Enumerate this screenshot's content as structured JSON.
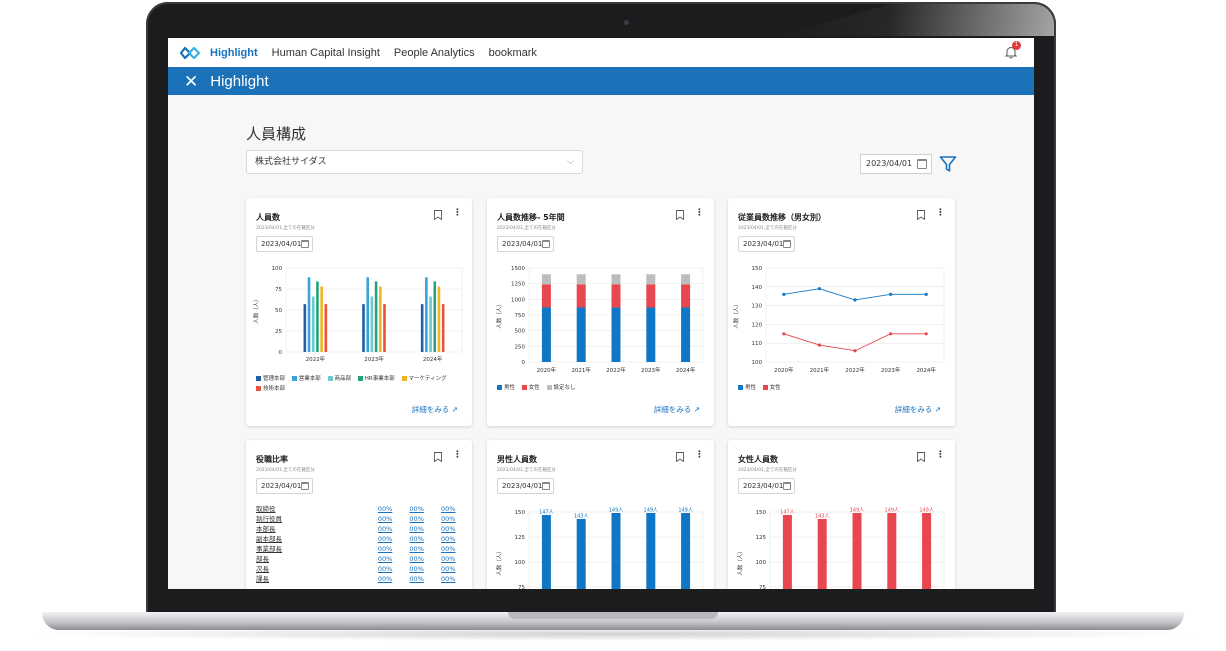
{
  "nav": {
    "items": [
      "Highlight",
      "Human Capital Insight",
      "People Analytics",
      "bookmark"
    ],
    "notification_count": "1"
  },
  "header": {
    "title": "Highlight"
  },
  "page": {
    "title": "人員構成",
    "company": "株式会社サイダス",
    "date": "2023/04/01"
  },
  "colors": {
    "brand": "#1c72b8",
    "male": "#0f77c6",
    "female": "#e8474f",
    "unset": "#bdbdbd"
  },
  "cards": [
    {
      "title": "人員数",
      "subtitle": "2023/04/01,全ての在籍区分",
      "date": "2023/04/01",
      "more": "詳細をみる",
      "chart_data": {
        "type": "bar",
        "categories": [
          "2022年",
          "2023年",
          "2024年"
        ],
        "ylabel": "人数（人）",
        "ylim": [
          0,
          100
        ],
        "yticks": [
          0,
          25,
          50,
          75,
          100
        ],
        "series": [
          {
            "name": "管理本部",
            "color": "#1f5fa8",
            "values": [
              57,
              57,
              57
            ]
          },
          {
            "name": "営業本部",
            "color": "#3ba3d8",
            "values": [
              89,
              89,
              89
            ]
          },
          {
            "name": "商品部",
            "color": "#6ec9cf",
            "values": [
              66,
              66,
              66
            ]
          },
          {
            "name": "HR事業本部",
            "color": "#23a37a",
            "values": [
              84,
              84,
              84
            ]
          },
          {
            "name": "マーケティング",
            "color": "#f2b624",
            "values": [
              78,
              78,
              78
            ]
          },
          {
            "name": "技術本部",
            "color": "#e8533a",
            "values": [
              57,
              57,
              57
            ]
          }
        ]
      }
    },
    {
      "title": "人員数推移- 5年間",
      "subtitle": "2023/04/01,全ての在籍区分",
      "date": "2023/04/01",
      "more": "詳細をみる",
      "chart_data": {
        "type": "bar",
        "stacked": true,
        "categories": [
          "2020年",
          "2021年",
          "2022年",
          "2023年",
          "2024年"
        ],
        "ylabel": "人数（人）",
        "ylim": [
          0,
          1500
        ],
        "yticks": [
          0,
          250,
          500,
          750,
          1000,
          1250,
          1500
        ],
        "series": [
          {
            "name": "男性",
            "color": "#0f77c6",
            "values": [
              870,
              870,
              870,
              870,
              870
            ]
          },
          {
            "name": "女性",
            "color": "#e8474f",
            "values": [
              370,
              370,
              370,
              370,
              370
            ]
          },
          {
            "name": "設定なし",
            "color": "#bdbdbd",
            "values": [
              160,
              160,
              160,
              160,
              160
            ]
          }
        ]
      }
    },
    {
      "title": "従業員数推移（男女別）",
      "subtitle": "2023/04/01,全ての在籍区分",
      "date": "2023/04/01",
      "more": "詳細をみる",
      "chart_data": {
        "type": "line",
        "categories": [
          "2020年",
          "2021年",
          "2022年",
          "2023年",
          "2024年"
        ],
        "ylabel": "人数（人）",
        "ylim": [
          100,
          150
        ],
        "yticks": [
          100,
          110,
          120,
          130,
          140,
          150
        ],
        "series": [
          {
            "name": "男性",
            "color": "#0f77c6",
            "values": [
              136,
              139,
              133,
              136,
              136
            ]
          },
          {
            "name": "女性",
            "color": "#e8474f",
            "values": [
              115,
              109,
              106,
              115,
              115
            ]
          }
        ]
      }
    },
    {
      "title": "役職比率",
      "subtitle": "2023/04/01,全ての在籍区分",
      "date": "2023/04/01",
      "rows": [
        {
          "label": "取締役",
          "values": [
            "00%",
            "00%",
            "00%"
          ]
        },
        {
          "label": "執行役員",
          "values": [
            "00%",
            "00%",
            "00%"
          ]
        },
        {
          "label": "本部長",
          "values": [
            "00%",
            "00%",
            "00%"
          ]
        },
        {
          "label": "副本部長",
          "values": [
            "00%",
            "00%",
            "00%"
          ]
        },
        {
          "label": "事業部長",
          "values": [
            "00%",
            "00%",
            "00%"
          ]
        },
        {
          "label": "部長",
          "values": [
            "00%",
            "00%",
            "00%"
          ]
        },
        {
          "label": "次長",
          "values": [
            "00%",
            "00%",
            "00%"
          ]
        },
        {
          "label": "課長",
          "values": [
            "00%",
            "00%",
            "00%"
          ]
        }
      ]
    },
    {
      "title": "男性人員数",
      "subtitle": "2023/04/01,全ての在籍区分",
      "date": "2023/04/01",
      "chart_data": {
        "type": "bar",
        "ylabel": "人数（人）",
        "ylim": [
          50,
          150
        ],
        "yticks": [
          50,
          75,
          100,
          125,
          150
        ],
        "color": "#0f77c6",
        "values": [
          147,
          143,
          149,
          149,
          149
        ],
        "data_labels": [
          "147人",
          "143人",
          "149人",
          "149人",
          "149人"
        ]
      }
    },
    {
      "title": "女性人員数",
      "subtitle": "2023/04/01,全ての在籍区分",
      "date": "2023/04/01",
      "chart_data": {
        "type": "bar",
        "ylabel": "人数（人）",
        "ylim": [
          50,
          150
        ],
        "yticks": [
          50,
          75,
          100,
          125,
          150
        ],
        "color": "#e8474f",
        "values": [
          147,
          143,
          149,
          149,
          149
        ],
        "data_labels": [
          "147人",
          "143人",
          "149人",
          "149人",
          "149人"
        ]
      }
    }
  ]
}
